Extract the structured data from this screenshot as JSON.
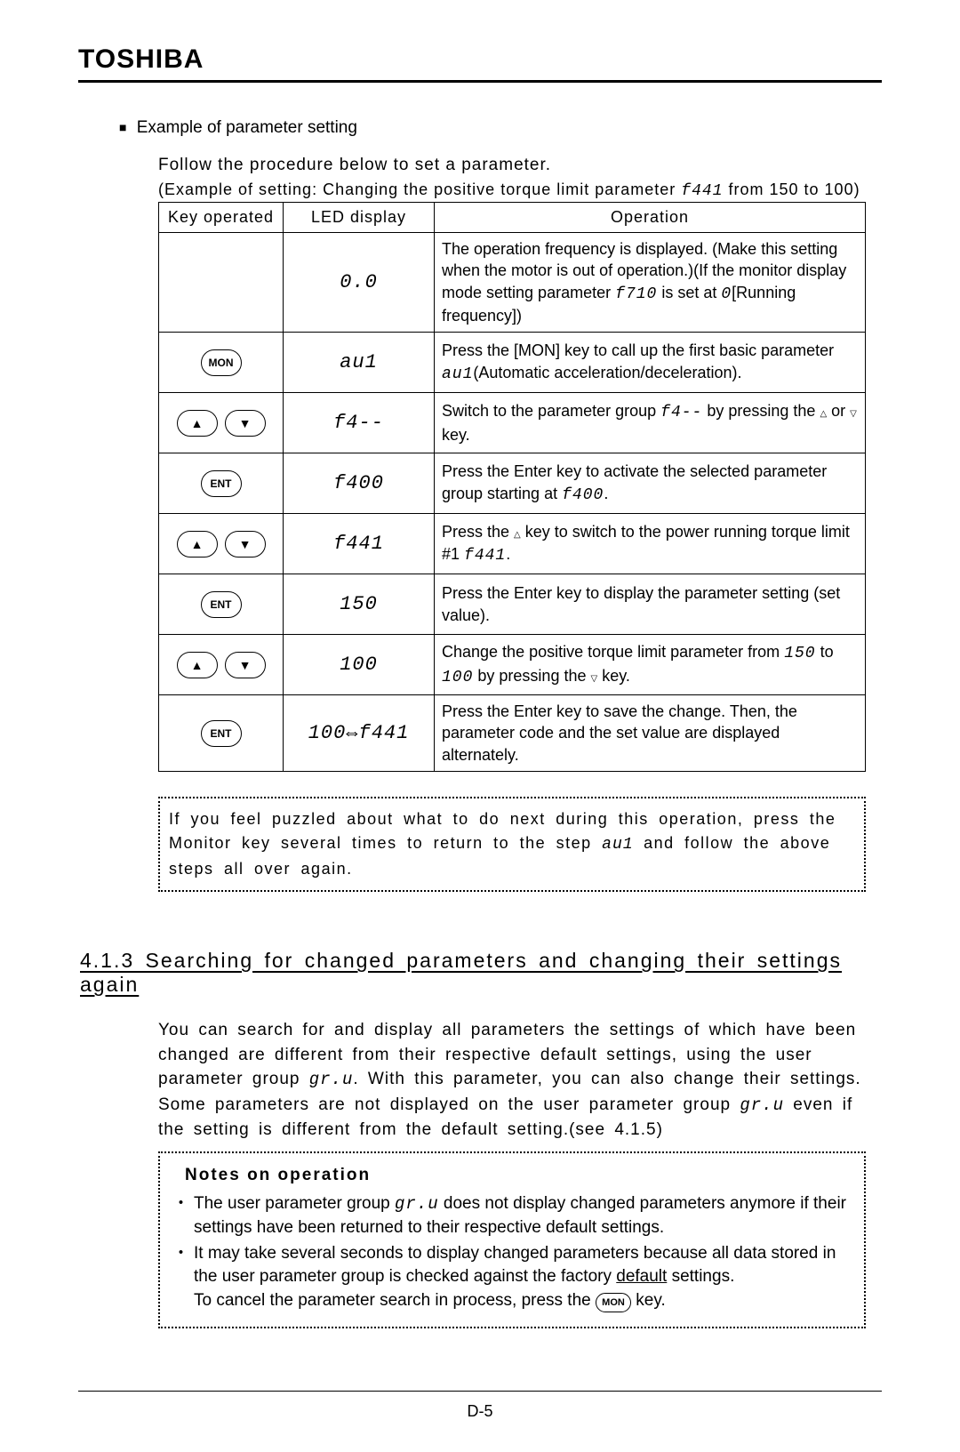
{
  "brand": "TOSHIBA",
  "section_title": "Example of parameter setting",
  "intro_line": "Follow the procedure below to set a parameter.",
  "intro_caption_prefix": "(Example of setting: Changing the positive torque limit parameter ",
  "intro_caption_code": "f441",
  "intro_caption_suffix": " from 150 to 100)",
  "table": {
    "headers": {
      "key": "Key operated",
      "led": "LED display",
      "op": "Operation"
    },
    "rows": [
      {
        "key": "",
        "led": "0.0",
        "op_parts": [
          {
            "t": "The operation frequency is displayed. (Make this setting when the motor is out of operation.)(If the monitor display mode setting parameter "
          },
          {
            "seg": "f710"
          },
          {
            "t": " is set at "
          },
          {
            "seg": "0"
          },
          {
            "t": "[Running frequency])"
          }
        ]
      },
      {
        "key": "MON",
        "led": "au1",
        "op_parts": [
          {
            "t": "Press the [MON] key to call up the first basic parameter "
          },
          {
            "seg": "au1"
          },
          {
            "t": "(Automatic acceleration/deceleration)."
          }
        ]
      },
      {
        "key": "UPDOWN",
        "led": "f4--",
        "op_parts": [
          {
            "t": "Switch to the parameter group "
          },
          {
            "seg": "f4--"
          },
          {
            "t": " by pressing the "
          },
          {
            "tri": "△"
          },
          {
            "t": " or "
          },
          {
            "tri": "▽"
          },
          {
            "t": " key."
          }
        ]
      },
      {
        "key": "ENT",
        "led": "f400",
        "op_parts": [
          {
            "t": "Press the Enter key to activate the selected parameter group starting at "
          },
          {
            "seg": "f400"
          },
          {
            "t": "."
          }
        ]
      },
      {
        "key": "UPDOWN",
        "led": "f441",
        "op_parts": [
          {
            "t": "Press the "
          },
          {
            "tri": "△"
          },
          {
            "t": " key to switch to the power running torque limit #1 "
          },
          {
            "seg": "f441"
          },
          {
            "t": "."
          }
        ]
      },
      {
        "key": "ENT",
        "led": "150",
        "op_parts": [
          {
            "t": "Press the Enter key to display the parameter setting (set value)."
          }
        ]
      },
      {
        "key": "UPDOWN",
        "led": "100",
        "op_parts": [
          {
            "t": "Change the positive torque limit parameter from "
          },
          {
            "seg": "150"
          },
          {
            "t": " to "
          },
          {
            "seg": "100"
          },
          {
            "t": " by pressing the "
          },
          {
            "tri": "▽"
          },
          {
            "t": " key."
          }
        ]
      },
      {
        "key": "ENT",
        "led": "100⇔f441",
        "op_parts": [
          {
            "t": "Press the Enter key to save the change. Then, the parameter code and the set value are displayed alternately."
          }
        ]
      }
    ]
  },
  "hint_parts": [
    {
      "t": "If you feel puzzled about what to do next during this operation, press the Monitor key several times to return to the step "
    },
    {
      "seg": "au1"
    },
    {
      "t": " and follow the above steps all over again."
    }
  ],
  "h2": "4.1.3 Searching for changed parameters and changing their settings again",
  "body2_parts": [
    {
      "t": "You can search for and display all parameters the settings of which have been changed are different from their respective default settings, using the user parameter group "
    },
    {
      "seg": "gr.u"
    },
    {
      "t": ".  With this parameter, you can also change their settings."
    },
    {
      "br": true
    },
    {
      "t": "Some parameters are not displayed on the user parameter group "
    },
    {
      "seg": "gr.u"
    },
    {
      "t": " even if the setting is different from the default setting.(see 4.1.5)"
    }
  ],
  "notes": {
    "title": "Notes on operation",
    "items": [
      [
        {
          "t": "The user parameter group "
        },
        {
          "seg": "gr.u"
        },
        {
          "t": " does not display changed parameters anymore if their settings have been returned to their respective default settings."
        }
      ],
      [
        {
          "t": "It may take several seconds to display changed parameters because all data stored in the user parameter group is checked against the factory "
        },
        {
          "u": "default"
        },
        {
          "t": " settings."
        },
        {
          "br": true
        },
        {
          "t": "To cancel the parameter search in process, press the "
        },
        {
          "btn": "MON"
        },
        {
          "t": " key."
        }
      ]
    ]
  },
  "page_number": "D-5"
}
